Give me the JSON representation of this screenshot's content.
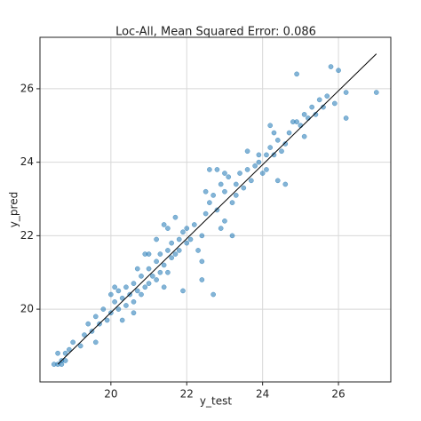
{
  "chart_data": {
    "type": "scatter",
    "title": "Loc-All, Mean Squared Error: 0.086",
    "x_label": "y_test",
    "y_label": "y_pred",
    "xlim": [
      18.13,
      27.38
    ],
    "ylim": [
      18.02,
      27.4
    ],
    "xticks": [
      20,
      22,
      24,
      26
    ],
    "yticks": [
      20,
      22,
      24,
      26
    ],
    "grid": true,
    "series": [
      {
        "color": "#1f77b4",
        "x": [
          18.5,
          18.6,
          18.7,
          18.8,
          18.6,
          18.9,
          18.7,
          19.0,
          19.2,
          19.4,
          19.5,
          19.6,
          19.7,
          19.8,
          19.9,
          20.0,
          20.0,
          20.1,
          20.2,
          20.2,
          20.3,
          20.4,
          20.4,
          20.5,
          20.6,
          20.6,
          20.7,
          20.8,
          20.8,
          20.9,
          21.0,
          21.0,
          21.1,
          21.2,
          21.2,
          21.3,
          21.3,
          21.4,
          21.5,
          21.5,
          21.6,
          21.6,
          21.7,
          21.8,
          21.8,
          21.9,
          22.0,
          22.0,
          22.1,
          22.2,
          20.3,
          20.6,
          21.2,
          21.4,
          21.0,
          20.7,
          20.1,
          21.7,
          22.4,
          22.5,
          22.6,
          22.7,
          22.8,
          22.9,
          22.6,
          22.8,
          23.0,
          23.1,
          23.2,
          23.3,
          23.4,
          23.5,
          23.6,
          23.7,
          23.8,
          23.9,
          24.0,
          24.1,
          24.2,
          24.3,
          24.4,
          24.5,
          24.6,
          24.7,
          24.8,
          24.9,
          25.0,
          25.1,
          25.2,
          25.3,
          25.4,
          25.5,
          25.6,
          25.7,
          25.8,
          26.0,
          25.9,
          26.2,
          26.2,
          27.0,
          24.9,
          24.4,
          24.6,
          23.9,
          24.1,
          22.7,
          22.4,
          23.2,
          22.4,
          22.3,
          23.0,
          22.9,
          23.3,
          21.9,
          20.9,
          21.4,
          19.6,
          19.3,
          18.8,
          25.1,
          24.3,
          24.2,
          23.6,
          23.0,
          22.5,
          21.5
        ],
        "values": [
          18.5,
          18.8,
          18.6,
          18.8,
          18.5,
          18.9,
          18.5,
          19.1,
          19.0,
          19.6,
          19.4,
          19.8,
          19.6,
          20.0,
          19.7,
          20.4,
          19.9,
          20.2,
          20.5,
          20.0,
          20.3,
          20.6,
          20.1,
          20.4,
          20.7,
          20.2,
          20.5,
          20.9,
          20.4,
          20.6,
          21.1,
          20.7,
          20.9,
          21.3,
          20.8,
          21.0,
          21.5,
          21.2,
          21.6,
          21.0,
          21.4,
          21.8,
          21.5,
          21.9,
          21.6,
          22.1,
          21.8,
          22.2,
          21.9,
          22.3,
          19.7,
          19.9,
          21.9,
          22.3,
          21.5,
          21.1,
          20.6,
          22.5,
          22.0,
          22.6,
          22.9,
          23.1,
          22.7,
          23.4,
          23.8,
          23.8,
          23.2,
          23.6,
          22.9,
          23.4,
          23.7,
          23.3,
          23.8,
          23.5,
          23.9,
          24.0,
          23.7,
          24.2,
          24.4,
          24.2,
          24.6,
          24.3,
          24.5,
          24.8,
          25.1,
          25.1,
          25.0,
          25.3,
          25.2,
          25.5,
          25.3,
          25.7,
          25.5,
          25.8,
          26.6,
          26.5,
          25.6,
          25.9,
          25.2,
          25.9,
          26.4,
          23.5,
          23.4,
          24.2,
          23.8,
          20.4,
          20.8,
          22.0,
          21.3,
          21.6,
          22.4,
          22.2,
          23.1,
          20.5,
          21.5,
          20.6,
          19.1,
          19.3,
          18.6,
          24.7,
          24.8,
          25.0,
          24.3,
          23.7,
          23.2,
          22.2
        ]
      }
    ],
    "reference_line": {
      "color": "#000000",
      "x": [
        18.6,
        27.0
      ],
      "values": [
        18.5,
        26.95
      ]
    }
  }
}
